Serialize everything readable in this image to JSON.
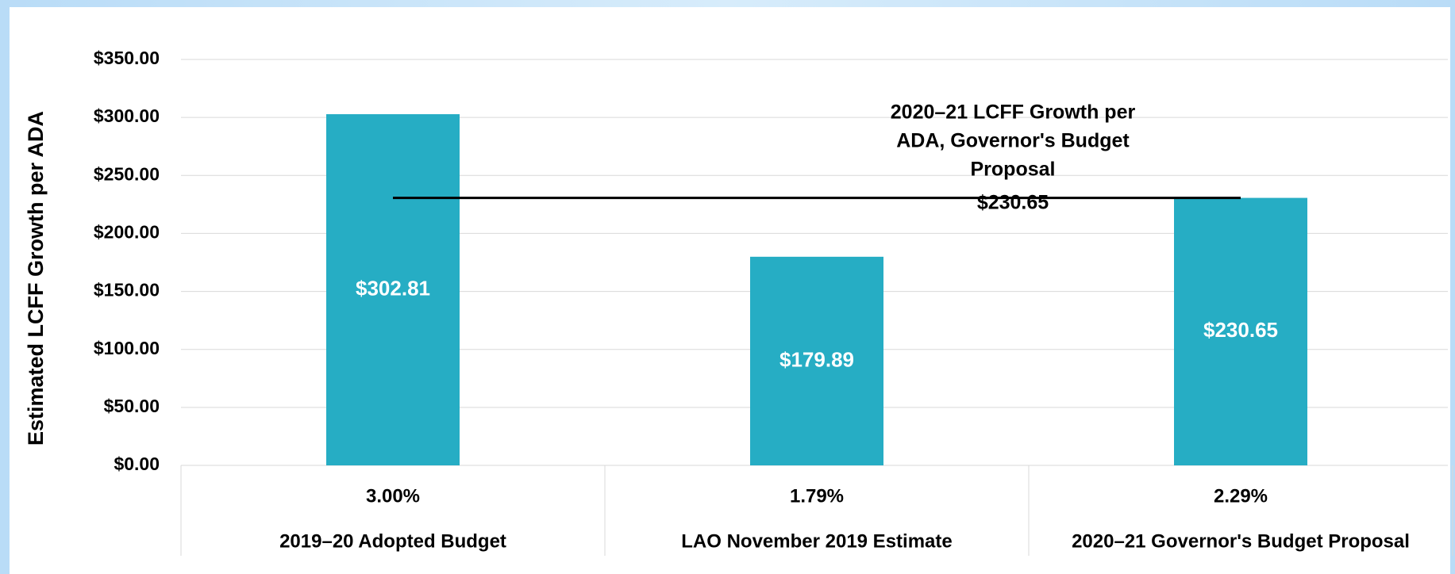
{
  "chart_data": {
    "type": "bar",
    "y_label": "Estimated LCFF Growth per ADA",
    "categories": [
      "2019–20 Adopted Budget",
      "LAO November 2019 Estimate",
      "2020–21 Governor's Budget Proposal"
    ],
    "values": [
      302.81,
      179.89,
      230.65
    ],
    "value_labels": [
      "$302.81",
      "$179.89",
      "$230.65"
    ],
    "growth_rates": [
      3.0,
      1.79,
      2.29
    ],
    "growth_rate_labels": [
      "3.00%",
      "1.79%",
      "2.29%"
    ],
    "color": "#26adc4",
    "ylim": [
      0,
      350
    ],
    "yticks": [
      {
        "value": 0,
        "label": "$0.00"
      },
      {
        "value": 50,
        "label": "$50.00"
      },
      {
        "value": 100,
        "label": "$100.00"
      },
      {
        "value": 150,
        "label": "$150.00"
      },
      {
        "value": 200,
        "label": "$200.00"
      },
      {
        "value": 250,
        "label": "$250.00"
      },
      {
        "value": 300,
        "label": "$300.00"
      },
      {
        "value": 350,
        "label": "$350.00"
      }
    ],
    "grid": true,
    "reference_line": {
      "value": 230.65,
      "value_label": "$230.65",
      "lines": [
        "2020–21 LCFF Growth per",
        "ADA, Governor's Budget",
        "Proposal"
      ],
      "color": "#000000"
    }
  }
}
